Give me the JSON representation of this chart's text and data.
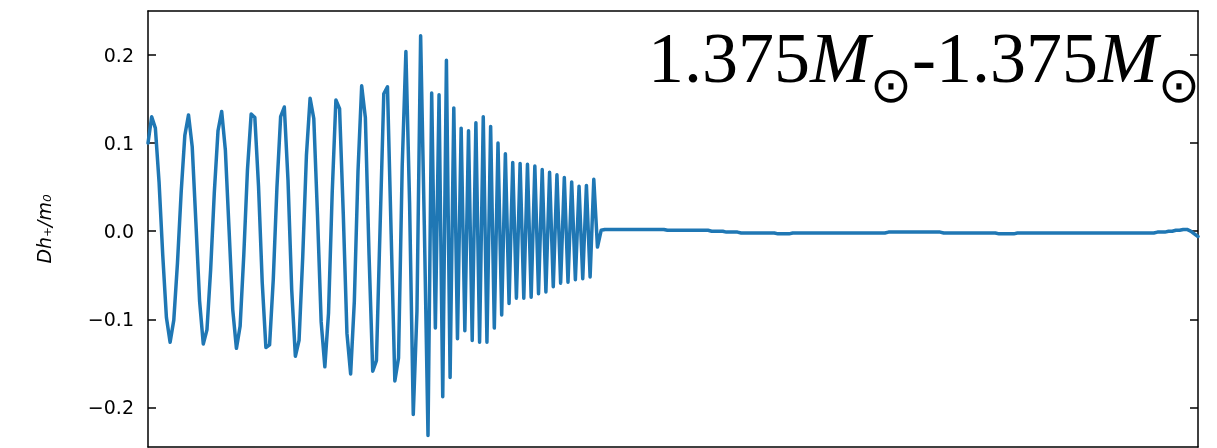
{
  "chart_data": {
    "type": "line",
    "ylabel": "Dh₊/m₀",
    "annotations": [
      "1.375M$_{⊙}$-1.375M$_{⊙}$"
    ],
    "categories": [
      null,
      null,
      null,
      null,
      null,
      null,
      null,
      null,
      null,
      null,
      null,
      null,
      null,
      null,
      null,
      null,
      null,
      null,
      null,
      null,
      null,
      null,
      null,
      null,
      null,
      null,
      null,
      null,
      null,
      null,
      null,
      null,
      null,
      null,
      null,
      null,
      null,
      null,
      null,
      null,
      null,
      null,
      null,
      null,
      null,
      null,
      null,
      null,
      null,
      null,
      null,
      null,
      null,
      null,
      null,
      null,
      null,
      null,
      null,
      null,
      null,
      null,
      null,
      null,
      null,
      null,
      null,
      null,
      null,
      null,
      null,
      null,
      null,
      null,
      null,
      null,
      null,
      null,
      null,
      null,
      null,
      null,
      null,
      null,
      null,
      null,
      null,
      null,
      null,
      null,
      null,
      null,
      null,
      null,
      null,
      null,
      null,
      null,
      null,
      null,
      null,
      null,
      null,
      null,
      null,
      null,
      null,
      null,
      null,
      null,
      null,
      null,
      null,
      null,
      null,
      null,
      null,
      null,
      null,
      null,
      null,
      null,
      null,
      null,
      null,
      null,
      null,
      null,
      null,
      null,
      null,
      null,
      null,
      null,
      null,
      null,
      null,
      null,
      null,
      null,
      null,
      null,
      null,
      null,
      null,
      null,
      null,
      null,
      null,
      null,
      null,
      null,
      null,
      null,
      null,
      null,
      null,
      null,
      null,
      null,
      null,
      null,
      null,
      null,
      null,
      null,
      null,
      null,
      null,
      null,
      null,
      null,
      null,
      null,
      null,
      null,
      null,
      null,
      null,
      null,
      null,
      null,
      null,
      null,
      null,
      null,
      null,
      null,
      null,
      null,
      null,
      null,
      null,
      null,
      null,
      null,
      null,
      null,
      null,
      null,
      null,
      null,
      null,
      null,
      null,
      null,
      null,
      null,
      null,
      null,
      null,
      null,
      null,
      null,
      null,
      null,
      null,
      null,
      null,
      null,
      null,
      null,
      null,
      null,
      null,
      null,
      null,
      null,
      null,
      null,
      null,
      null,
      null,
      null,
      null,
      null,
      null,
      null,
      null,
      null,
      null,
      null,
      null,
      null,
      null,
      null,
      null,
      null,
      null,
      null,
      null,
      null,
      null,
      null,
      null,
      null,
      null,
      null,
      null,
      null,
      null,
      null,
      null,
      null,
      null,
      null,
      null,
      null,
      null,
      null,
      null,
      null,
      null,
      null,
      null,
      null,
      null,
      null,
      null,
      null,
      null,
      null,
      null,
      null,
      null,
      null
    ],
    "ylim": [
      -0.245,
      0.25
    ],
    "yticks": [
      {
        "value": -0.2,
        "label": "−0.2"
      },
      {
        "value": -0.1,
        "label": "−0.1"
      },
      {
        "value": 0,
        "label": "0.0"
      },
      0.1,
      0.2
    ],
    "tick_labels": "y",
    "grid": false,
    "line_style": "solid",
    "series": [
      {
        "color": "#1f77b4",
        "values": [
          0.1,
          0.13,
          0.117,
          0.056,
          -0.027,
          -0.098,
          -0.126,
          -0.101,
          -0.036,
          0.044,
          0.109,
          0.132,
          0.096,
          0.01,
          -0.079,
          -0.128,
          -0.112,
          -0.044,
          0.044,
          0.114,
          0.136,
          0.092,
          0.002,
          -0.089,
          -0.133,
          -0.108,
          -0.027,
          0.07,
          0.133,
          0.129,
          0.051,
          -0.058,
          -0.132,
          -0.129,
          -0.055,
          0.05,
          0.13,
          0.141,
          0.058,
          -0.066,
          -0.142,
          -0.124,
          -0.029,
          0.086,
          0.151,
          0.128,
          0.019,
          -0.103,
          -0.154,
          -0.093,
          0.044,
          0.149,
          0.139,
          0.02,
          -0.116,
          -0.162,
          -0.08,
          0.068,
          0.165,
          0.129,
          -0.027,
          -0.159,
          -0.147,
          0.005,
          0.156,
          0.164,
          -0.003,
          -0.17,
          -0.144,
          0.074,
          0.204,
          0.032,
          -0.208,
          -0.091,
          0.222,
          0.007,
          -0.232,
          0.157,
          -0.11,
          0.155,
          -0.188,
          0.194,
          -0.166,
          0.14,
          -0.122,
          0.117,
          -0.113,
          0.114,
          -0.124,
          0.123,
          -0.126,
          0.13,
          -0.126,
          0.119,
          -0.11,
          0.1,
          -0.095,
          0.088,
          -0.082,
          0.078,
          -0.076,
          0.077,
          -0.076,
          0.076,
          -0.075,
          0.074,
          -0.071,
          0.07,
          -0.069,
          0.067,
          -0.063,
          0.064,
          -0.059,
          0.061,
          -0.058,
          0.056,
          -0.055,
          0.051,
          -0.054,
          0.052,
          -0.052,
          0.059,
          -0.018,
          0.001,
          0.002,
          0.002,
          0.002,
          0.002,
          0.002,
          0.002,
          0.002,
          0.002,
          0.002,
          0.002,
          0.002,
          0.002,
          0.002,
          0.002,
          0.002,
          0.002,
          0.002,
          0.001,
          0.001,
          0.001,
          0.001,
          0.001,
          0.001,
          0.001,
          0.001,
          0.001,
          0.001,
          0.001,
          0.001,
          0,
          0,
          0,
          0,
          -0.001,
          -0.001,
          -0.001,
          -0.001,
          -0.002,
          -0.002,
          -0.002,
          -0.002,
          -0.002,
          -0.002,
          -0.002,
          -0.002,
          -0.002,
          -0.002,
          -0.003,
          -0.003,
          -0.003,
          -0.003,
          -0.002,
          -0.002,
          -0.002,
          -0.002,
          -0.002,
          -0.002,
          -0.002,
          -0.002,
          -0.002,
          -0.002,
          -0.002,
          -0.002,
          -0.002,
          -0.002,
          -0.002,
          -0.002,
          -0.002,
          -0.002,
          -0.002,
          -0.002,
          -0.002,
          -0.002,
          -0.002,
          -0.002,
          -0.002,
          -0.002,
          -0.001,
          -0.001,
          -0.001,
          -0.001,
          -0.001,
          -0.001,
          -0.001,
          -0.001,
          -0.001,
          -0.001,
          -0.001,
          -0.001,
          -0.001,
          -0.001,
          -0.001,
          -0.002,
          -0.002,
          -0.002,
          -0.002,
          -0.002,
          -0.002,
          -0.002,
          -0.002,
          -0.002,
          -0.002,
          -0.002,
          -0.002,
          -0.002,
          -0.002,
          -0.002,
          -0.003,
          -0.003,
          -0.003,
          -0.003,
          -0.003,
          -0.002,
          -0.002,
          -0.002,
          -0.002,
          -0.002,
          -0.002,
          -0.002,
          -0.002,
          -0.002,
          -0.002,
          -0.002,
          -0.002,
          -0.002,
          -0.002,
          -0.002,
          -0.002,
          -0.002,
          -0.002,
          -0.002,
          -0.002,
          -0.002,
          -0.002,
          -0.002,
          -0.002,
          -0.002,
          -0.002,
          -0.002,
          -0.002,
          -0.002,
          -0.002,
          -0.002,
          -0.002,
          -0.002,
          -0.002,
          -0.002,
          -0.002,
          -0.002,
          -0.002,
          -0.001,
          -0.001,
          -0.001,
          0,
          0,
          0.001,
          0.001,
          0.002,
          0.002,
          0,
          -0.003,
          -0.006
        ]
      }
    ]
  }
}
